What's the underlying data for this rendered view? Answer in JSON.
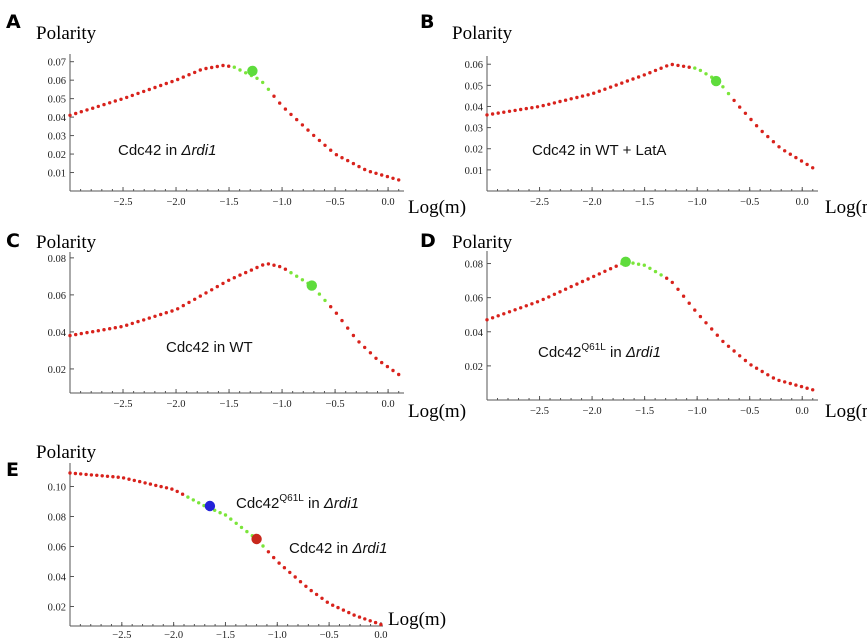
{
  "chart_data": [
    {
      "panel": "A",
      "type": "scatter",
      "ylabel": "Polarity",
      "xlabel": "Log(m)",
      "xlim": [
        -3.0,
        0.15
      ],
      "ylim": [
        0.0,
        0.072
      ],
      "xticks": [
        "-2.5",
        "-2.0",
        "-1.5",
        "-1.0",
        "-0.5",
        "0.0"
      ],
      "yticks": [
        "0.01",
        "0.02",
        "0.03",
        "0.04",
        "0.05",
        "0.06",
        "0.07"
      ],
      "annotation": {
        "parts": [
          "Cdc42 in ",
          "Δrdi1"
        ]
      },
      "series": [
        {
          "color": "#d8221c",
          "highlight_color": "#7be53a",
          "highlight_range": [
            -1.5,
            -1.1
          ],
          "x": [
            -3.0,
            -2.5,
            -2.0,
            -1.75,
            -1.55,
            -1.45,
            -1.2,
            -1.0,
            -0.7,
            -0.5,
            -0.2,
            0.1
          ],
          "y": [
            0.041,
            0.05,
            0.06,
            0.066,
            0.068,
            0.067,
            0.06,
            0.046,
            0.03,
            0.02,
            0.011,
            0.006
          ]
        }
      ],
      "marker": {
        "x": -1.28,
        "y": 0.065,
        "color": "#5edc3c"
      }
    },
    {
      "panel": "B",
      "type": "scatter",
      "ylabel": "Polarity",
      "xlabel": "Log(m)",
      "xlim": [
        -3.0,
        0.15
      ],
      "ylim": [
        0.0,
        0.062
      ],
      "xticks": [
        "-2.5",
        "-2.0",
        "-1.5",
        "-1.0",
        "-0.5",
        "0.0"
      ],
      "yticks": [
        "0.01",
        "0.02",
        "0.03",
        "0.04",
        "0.05",
        "0.06"
      ],
      "annotation": {
        "parts": [
          "Cdc42 in WT + LatA"
        ]
      },
      "series": [
        {
          "color": "#d8221c",
          "highlight_color": "#7be53a",
          "highlight_range": [
            -1.05,
            -0.65
          ],
          "x": [
            -3.0,
            -2.5,
            -2.0,
            -1.5,
            -1.25,
            -1.0,
            -0.8,
            -0.6,
            -0.4,
            -0.2,
            0.0,
            0.1
          ],
          "y": [
            0.036,
            0.04,
            0.046,
            0.055,
            0.06,
            0.058,
            0.052,
            0.04,
            0.029,
            0.02,
            0.014,
            0.011
          ]
        }
      ],
      "marker": {
        "x": -0.82,
        "y": 0.052,
        "color": "#5edc3c"
      }
    },
    {
      "panel": "C",
      "type": "scatter",
      "ylabel": "Polarity",
      "xlabel": "Log(m)",
      "xlim": [
        -3.0,
        0.15
      ],
      "ylim": [
        0.007,
        0.081
      ],
      "xticks": [
        "-2.5",
        "-2.0",
        "-1.5",
        "-1.0",
        "-0.5",
        "0.0"
      ],
      "yticks": [
        "0.02",
        "0.04",
        "0.06",
        "0.08"
      ],
      "annotation": {
        "parts": [
          "Cdc42 in WT"
        ]
      },
      "series": [
        {
          "color": "#d8221c",
          "highlight_color": "#7be53a",
          "highlight_range": [
            -0.95,
            -0.55
          ],
          "x": [
            -3.0,
            -2.5,
            -2.0,
            -1.5,
            -1.15,
            -1.0,
            -0.72,
            -0.5,
            -0.3,
            -0.1,
            0.1
          ],
          "y": [
            0.038,
            0.043,
            0.052,
            0.068,
            0.077,
            0.075,
            0.065,
            0.051,
            0.036,
            0.025,
            0.017
          ]
        }
      ],
      "marker": {
        "x": -0.72,
        "y": 0.065,
        "color": "#5edc3c"
      }
    },
    {
      "panel": "D",
      "type": "scatter",
      "ylabel": "Polarity",
      "xlabel": "Log(m)",
      "xlim": [
        -3.0,
        0.15
      ],
      "ylim": [
        0.0,
        0.085
      ],
      "xticks": [
        "-2.5",
        "-2.0",
        "-1.5",
        "-1.0",
        "-0.5",
        "0.0"
      ],
      "yticks": [
        "0.02",
        "0.04",
        "0.06",
        "0.08"
      ],
      "annotation": {
        "parts": [
          "Cdc42",
          "Q61L",
          " in ",
          "Δrdi1"
        ]
      },
      "series": [
        {
          "color": "#d8221c",
          "highlight_color": "#7be53a",
          "highlight_range": [
            -1.72,
            -1.3
          ],
          "x": [
            -3.0,
            -2.5,
            -2.0,
            -1.68,
            -1.5,
            -1.25,
            -1.0,
            -0.75,
            -0.5,
            -0.25,
            0.1
          ],
          "y": [
            0.047,
            0.058,
            0.072,
            0.081,
            0.079,
            0.07,
            0.051,
            0.034,
            0.021,
            0.012,
            0.006
          ]
        }
      ],
      "marker": {
        "x": -1.68,
        "y": 0.081,
        "color": "#5edc3c"
      }
    },
    {
      "panel": "E",
      "type": "scatter",
      "ylabel": "Polarity",
      "xlabel": "Log(m)",
      "xlim": [
        -3.0,
        0.02
      ],
      "ylim": [
        0.007,
        0.113
      ],
      "xticks": [
        "-2.5",
        "-2.0",
        "-1.5",
        "-1.0",
        "-0.5",
        "0.0"
      ],
      "yticks": [
        "0.02",
        "0.04",
        "0.06",
        "0.08",
        "0.10"
      ],
      "annotations": [
        {
          "parts": [
            "Cdc42",
            "Q61L",
            " in ",
            "Δrdi1"
          ]
        },
        {
          "parts": [
            "Cdc42 in ",
            "Δrdi1"
          ]
        }
      ],
      "series": [
        {
          "color": "#d8221c",
          "highlight_color": "#7be53a",
          "highlight_range": [
            -1.9,
            -1.1
          ],
          "x": [
            -3.0,
            -2.5,
            -2.0,
            -1.7,
            -1.5,
            -1.2,
            -1.0,
            -0.7,
            -0.5,
            -0.25,
            0.0
          ],
          "y": [
            0.109,
            0.106,
            0.098,
            0.087,
            0.081,
            0.065,
            0.05,
            0.032,
            0.022,
            0.014,
            0.008
          ]
        }
      ],
      "markers": [
        {
          "x": -1.65,
          "y": 0.087,
          "color": "#2323d8"
        },
        {
          "x": -1.2,
          "y": 0.065,
          "color": "#c8281c"
        }
      ]
    }
  ]
}
